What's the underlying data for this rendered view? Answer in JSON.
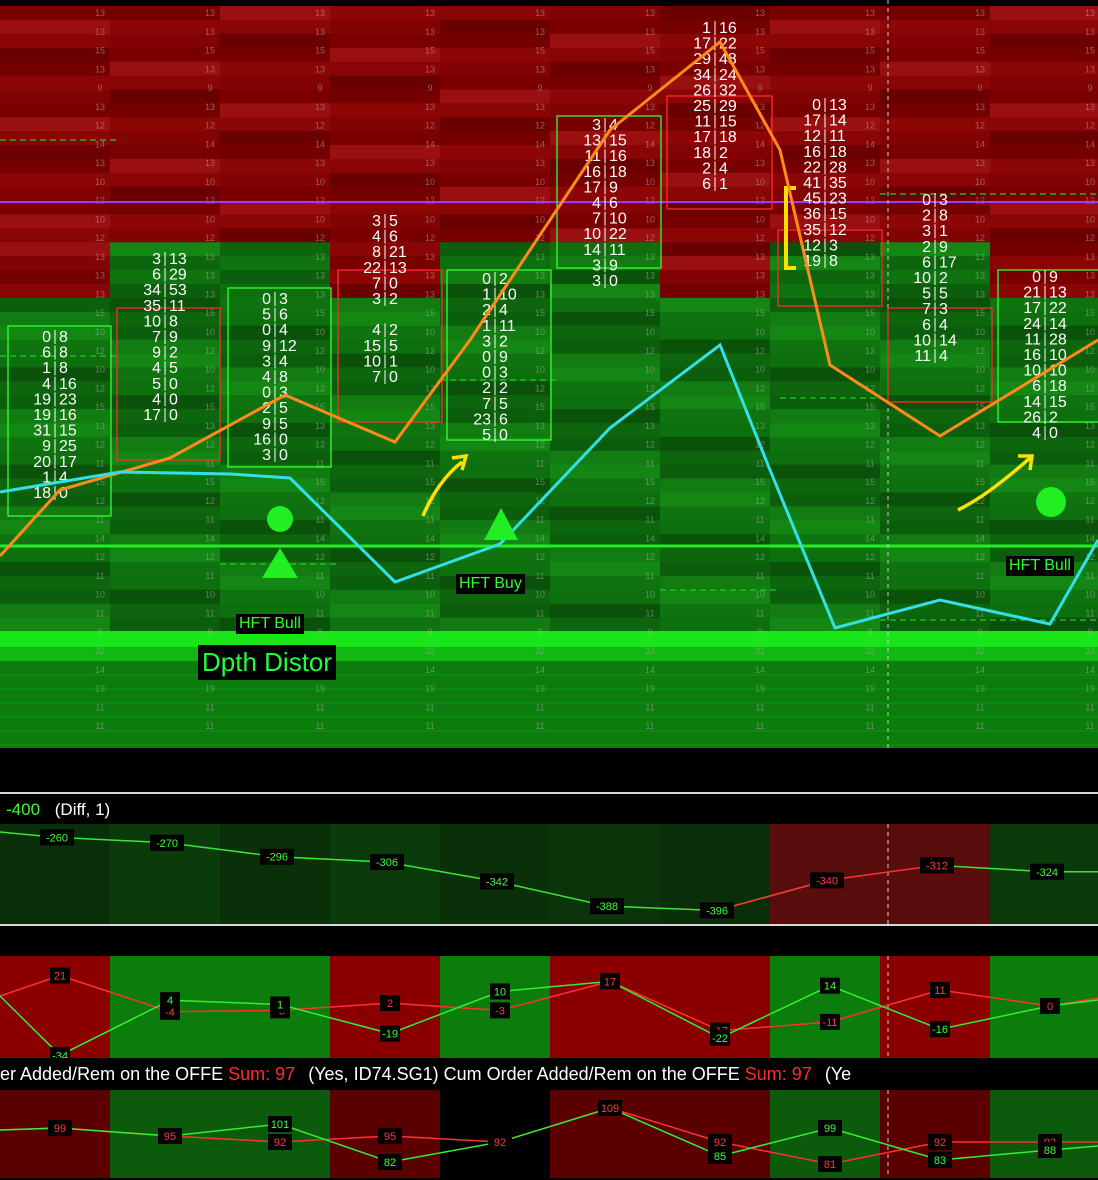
{
  "chart_data": [
    {
      "type": "footprint",
      "scale_labels": [
        "13",
        "13",
        "15",
        "13",
        "9",
        "13",
        "12",
        "14",
        "13",
        "10",
        "12",
        "10",
        "12",
        "13",
        "13",
        "13",
        "15",
        "10",
        "12",
        "10",
        "12",
        "15",
        "13",
        "12",
        "11",
        "15",
        "12",
        "11",
        "14",
        "12",
        "11",
        "10",
        "11",
        "9",
        "32",
        "14",
        "19",
        "11",
        "11",
        "17",
        "7"
      ],
      "labels": {
        "hft_bull_1": "HFT Bull",
        "hft_buy": "HFT Buy",
        "hft_bull_2": "HFT Bull",
        "dpth_distor": "Dpth Distor"
      },
      "bars": [
        {
          "color": "green",
          "rows": [
            [
              "0",
              "8"
            ],
            [
              "6",
              "8"
            ],
            [
              "1",
              "8"
            ],
            [
              "4",
              "16"
            ],
            [
              "19",
              "23"
            ],
            [
              "19",
              "16"
            ],
            [
              "31",
              "15"
            ],
            [
              "9",
              "25"
            ],
            [
              "20",
              "17"
            ],
            [
              "1",
              "4"
            ],
            [
              "18",
              "0"
            ]
          ]
        },
        {
          "color": "red",
          "rows": [
            [
              "3",
              "13"
            ],
            [
              "6",
              "29"
            ],
            [
              "34",
              "53"
            ],
            [
              "35",
              "11"
            ],
            [
              "10",
              "8"
            ],
            [
              "7",
              "9"
            ],
            [
              "9",
              "2"
            ],
            [
              "4",
              "5"
            ],
            [
              "5",
              "0"
            ],
            [
              "4",
              "0"
            ],
            [
              "17",
              "0"
            ]
          ]
        },
        {
          "color": "green",
          "rows": [
            [
              "0",
              "3"
            ],
            [
              "5",
              "6"
            ],
            [
              "0",
              "4"
            ],
            [
              "9",
              "12"
            ],
            [
              "3",
              "4"
            ],
            [
              "4",
              "8"
            ],
            [
              "0",
              "3"
            ],
            [
              "2",
              "5"
            ],
            [
              "9",
              "5"
            ],
            [
              "16",
              "0"
            ],
            [
              "3",
              "0"
            ]
          ]
        },
        {
          "color": "red",
          "rows": [
            [
              "3",
              "5"
            ],
            [
              "4",
              "6"
            ],
            [
              "8",
              "21"
            ],
            [
              "22",
              "13"
            ],
            [
              "7",
              "0"
            ],
            [
              "3",
              "2"
            ],
            [
              "",
              ""
            ],
            [
              "4",
              "2"
            ],
            [
              "15",
              "5"
            ],
            [
              "10",
              "1"
            ],
            [
              "7",
              "0"
            ]
          ]
        },
        {
          "color": "green",
          "rows": [
            [
              "0",
              "2"
            ],
            [
              "1",
              "10"
            ],
            [
              "2",
              "4"
            ],
            [
              "1",
              "11"
            ],
            [
              "3",
              "2"
            ],
            [
              "0",
              "9"
            ],
            [
              "0",
              "3"
            ],
            [
              "2",
              "2"
            ],
            [
              "7",
              "5"
            ],
            [
              "23",
              "6"
            ],
            [
              "5",
              "0"
            ]
          ]
        },
        {
          "color": "green",
          "rows": [
            [
              "3",
              "4"
            ],
            [
              "13",
              "15"
            ],
            [
              "11",
              "16"
            ],
            [
              "16",
              "18"
            ],
            [
              "17",
              "9"
            ],
            [
              "4",
              "6"
            ],
            [
              "7",
              "10"
            ],
            [
              "10",
              "22"
            ],
            [
              "14",
              "11"
            ],
            [
              "3",
              "9"
            ],
            [
              "3",
              "0"
            ]
          ]
        },
        {
          "color": "red",
          "rows": [
            [
              "1",
              "16"
            ],
            [
              "17",
              "22"
            ],
            [
              "29",
              "48"
            ],
            [
              "34",
              "24"
            ],
            [
              "26",
              "32"
            ],
            [
              "25",
              "29"
            ],
            [
              "11",
              "15"
            ],
            [
              "17",
              "18"
            ],
            [
              "18",
              "2"
            ],
            [
              "2",
              "4"
            ],
            [
              "6",
              "1"
            ]
          ]
        },
        {
          "color": "red",
          "rows": [
            [
              "0",
              "13"
            ],
            [
              "17",
              "14"
            ],
            [
              "12",
              "11"
            ],
            [
              "16",
              "18"
            ],
            [
              "22",
              "28"
            ],
            [
              "41",
              "35"
            ],
            [
              "45",
              "23"
            ],
            [
              "36",
              "15"
            ],
            [
              "35",
              "12"
            ],
            [
              "12",
              "3"
            ],
            [
              "19",
              "8"
            ]
          ]
        },
        {
          "color": "red",
          "rows": [
            [
              "0",
              "3"
            ],
            [
              "2",
              "8"
            ],
            [
              "3",
              "1"
            ],
            [
              "2",
              "9"
            ],
            [
              "6",
              "17"
            ],
            [
              "10",
              "2"
            ],
            [
              "5",
              "5"
            ],
            [
              "7",
              "3"
            ],
            [
              "6",
              "4"
            ],
            [
              "10",
              "14"
            ],
            [
              "11",
              "4"
            ]
          ]
        },
        {
          "color": "green",
          "rows": [
            [
              "0",
              "9"
            ],
            [
              "21",
              "13"
            ],
            [
              "17",
              "22"
            ],
            [
              "24",
              "14"
            ],
            [
              "11",
              "28"
            ],
            [
              "16",
              "10"
            ],
            [
              "10",
              "10"
            ],
            [
              "6",
              "18"
            ],
            [
              "14",
              "15"
            ],
            [
              "26",
              "2"
            ],
            [
              "4",
              "0"
            ]
          ]
        }
      ],
      "series": [
        {
          "name": "",
          "color": "#ff8a1a",
          "values": [
            548,
            480,
            458,
            395,
            440,
            425,
            380,
            435,
            540,
            400,
            405,
            425,
            405,
            380,
            345
          ]
        },
        {
          "name": "",
          "color": "#33e0e8",
          "values": [
            492,
            470,
            475,
            480,
            582,
            540,
            540,
            440,
            345,
            480,
            628,
            595,
            622,
            540
          ]
        }
      ]
    },
    {
      "type": "line",
      "title": "(Diff, 1)",
      "left_value": "-400",
      "data_labels": [
        "-260",
        "-270",
        "-296",
        "-306",
        "-342",
        "-388",
        "-396",
        "-340",
        "-312",
        "-324"
      ],
      "values": [
        -260,
        -270,
        -296,
        -306,
        -342,
        -388,
        -396,
        -340,
        -312,
        -324
      ]
    },
    {
      "type": "line",
      "series": [
        {
          "name": "",
          "color": "#ff2b2b",
          "values": [
            21,
            -4,
            -3,
            2,
            -3,
            17,
            -17,
            -11,
            11,
            0
          ]
        },
        {
          "name": "",
          "color": "#2bff2b",
          "values": [
            -34,
            4,
            1,
            -19,
            10,
            17,
            -22,
            14,
            -16,
            0
          ]
        }
      ],
      "data_labels_red": [
        "21",
        "-4",
        "-3",
        "2",
        "-3",
        "17",
        "-17",
        "-11",
        "11",
        "0"
      ],
      "data_labels_green": [
        "-34",
        "4",
        "1",
        "-19",
        "10",
        "",
        "-22",
        "14",
        "-16",
        ""
      ]
    },
    {
      "type": "line",
      "series": [
        {
          "name": "",
          "color": "#ff2b2b",
          "values": [
            99,
            95,
            92,
            95,
            92,
            109,
            92,
            81,
            92,
            92
          ]
        },
        {
          "name": "",
          "color": "#2bff2b",
          "values": [
            99,
            95,
            101,
            82,
            92,
            109,
            85,
            99,
            83,
            88
          ]
        }
      ],
      "data_labels_red": [
        "99",
        "95",
        "92",
        "95",
        "92",
        "109",
        "92",
        "81",
        "92",
        "92"
      ],
      "data_labels_green": [
        "",
        "",
        "101",
        "82",
        "",
        "",
        "85",
        "99",
        "83",
        "88"
      ]
    }
  ],
  "study_bar": {
    "part1": "er Added/Rem on the OFFE",
    "sum1": "Sum: 97",
    "part2": "(Yes, ID74.SG1)  Cum Order Added/Rem on the OFFE",
    "sum2": "Sum: 97",
    "part3": "(Ye"
  },
  "colors": {
    "bid_red": "#8b0000",
    "ask_green": "#0a8a0a",
    "orange_line": "#ff8a1a",
    "cyan_line": "#33e0e8",
    "purple_line": "#9a3cff",
    "signal_green": "#22ee22"
  }
}
